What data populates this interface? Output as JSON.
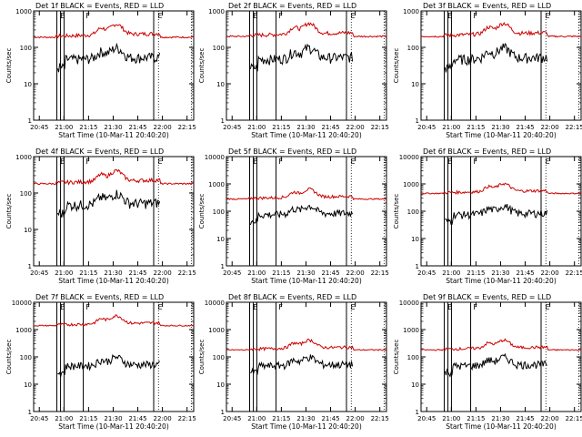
{
  "chart_data": [
    {
      "type": "line",
      "title": "Det 1f BLACK = Events, RED = LLD",
      "xlabel": "Start Time (10-Mar-11 20:40:20)",
      "ylabel": "Counts/sec",
      "log": true,
      "ylim": [
        1,
        1000
      ],
      "yticks": [
        "1",
        "10",
        "100",
        "1000"
      ],
      "xticks": [
        "20:45",
        "21:00",
        "21:15",
        "21:30",
        "21:45",
        "22:00",
        "22:15"
      ],
      "flags": [
        "E",
        "F",
        "E"
      ],
      "black_level": 50,
      "red_level": 190
    },
    {
      "type": "line",
      "title": "Det 2f BLACK = Events, RED = LLD",
      "xlabel": "Start Time (10-Mar-11 20:40:20)",
      "ylabel": "Counts/sec",
      "log": true,
      "ylim": [
        1,
        1000
      ],
      "yticks": [
        "1",
        "10",
        "100",
        "1000"
      ],
      "xticks": [
        "20:45",
        "21:00",
        "21:15",
        "21:30",
        "21:45",
        "22:00",
        "22:15"
      ],
      "flags": [
        "E",
        "F",
        "E"
      ],
      "black_level": 50,
      "red_level": 200
    },
    {
      "type": "line",
      "title": "Det 3f BLACK = Events, RED = LLD",
      "xlabel": "Start Time (10-Mar-11 20:40:20)",
      "ylabel": "Counts/sec",
      "log": true,
      "ylim": [
        1,
        1000
      ],
      "yticks": [
        "1",
        "10",
        "100",
        "1000"
      ],
      "xticks": [
        "20:45",
        "21:00",
        "21:15",
        "21:30",
        "21:45",
        "22:00",
        "22:15"
      ],
      "flags": [
        "E",
        "F",
        "E"
      ],
      "black_level": 50,
      "red_level": 200
    },
    {
      "type": "line",
      "title": "Det 4f BLACK = Events, RED = LLD",
      "xlabel": "Start Time (10-Mar-11 20:40:20)",
      "ylabel": "Counts/sec",
      "log": true,
      "ylim": [
        1,
        1000
      ],
      "yticks": [
        "1",
        "10",
        "100",
        "1000"
      ],
      "xticks": [
        "20:45",
        "21:00",
        "21:15",
        "21:30",
        "21:45",
        "22:00",
        "22:15"
      ],
      "flags": [
        "E",
        "F",
        "E"
      ],
      "black_level": 50,
      "red_level": 180
    },
    {
      "type": "line",
      "title": "Det 5f BLACK = Events, RED = LLD",
      "xlabel": "Start Time (10-Mar-11 20:40:20)",
      "ylabel": "Counts/sec",
      "log": true,
      "ylim": [
        1,
        10000
      ],
      "yticks": [
        "1",
        "10",
        "100",
        "1000",
        "10000"
      ],
      "xticks": [
        "20:45",
        "21:00",
        "21:15",
        "21:30",
        "21:45",
        "22:00",
        "22:15"
      ],
      "flags": [
        "E",
        "F",
        "E"
      ],
      "black_level": 80,
      "red_level": 280
    },
    {
      "type": "line",
      "title": "Det 6f BLACK = Events, RED = LLD",
      "xlabel": "Start Time (10-Mar-11 20:40:20)",
      "ylabel": "Counts/sec",
      "log": true,
      "ylim": [
        1,
        10000
      ],
      "yticks": [
        "1",
        "10",
        "100",
        "1000",
        "10000"
      ],
      "xticks": [
        "20:45",
        "21:00",
        "21:15",
        "21:30",
        "21:45",
        "22:00",
        "22:15"
      ],
      "flags": [
        "E",
        "F",
        "E"
      ],
      "black_level": 80,
      "red_level": 450
    },
    {
      "type": "line",
      "title": "Det 7f BLACK = Events, RED = LLD",
      "xlabel": "Start Time (10-Mar-11 20:40:20)",
      "ylabel": "Counts/sec",
      "log": true,
      "ylim": [
        1,
        10000
      ],
      "yticks": [
        "1",
        "10",
        "100",
        "1000",
        "10000"
      ],
      "xticks": [
        "20:45",
        "21:00",
        "21:15",
        "21:30",
        "21:45",
        "22:00",
        "22:15"
      ],
      "flags": [
        "E",
        "F",
        "E"
      ],
      "black_level": 50,
      "red_level": 1400
    },
    {
      "type": "line",
      "title": "Det 8f BLACK = Events, RED = LLD",
      "xlabel": "Start Time (10-Mar-11 20:40:20)",
      "ylabel": "Counts/sec",
      "log": true,
      "ylim": [
        1,
        10000
      ],
      "yticks": [
        "1",
        "10",
        "100",
        "1000",
        "10000"
      ],
      "xticks": [
        "20:45",
        "21:00",
        "21:15",
        "21:30",
        "21:45",
        "22:00",
        "22:15"
      ],
      "flags": [
        "E",
        "F",
        "E"
      ],
      "black_level": 50,
      "red_level": 180
    },
    {
      "type": "line",
      "title": "Det 9f BLACK = Events, RED = LLD",
      "xlabel": "Start Time (10-Mar-11 20:40:20)",
      "ylabel": "Counts/sec",
      "log": true,
      "ylim": [
        1,
        10000
      ],
      "yticks": [
        "1",
        "10",
        "100",
        "1000",
        "10000"
      ],
      "xticks": [
        "20:45",
        "21:00",
        "21:15",
        "21:30",
        "21:45",
        "22:00",
        "22:15"
      ],
      "flags": [
        "E",
        "F",
        "E"
      ],
      "black_level": 50,
      "red_level": 180
    }
  ],
  "colors": {
    "events": "#000000",
    "lld": "#cc0000",
    "axis": "#000000"
  }
}
